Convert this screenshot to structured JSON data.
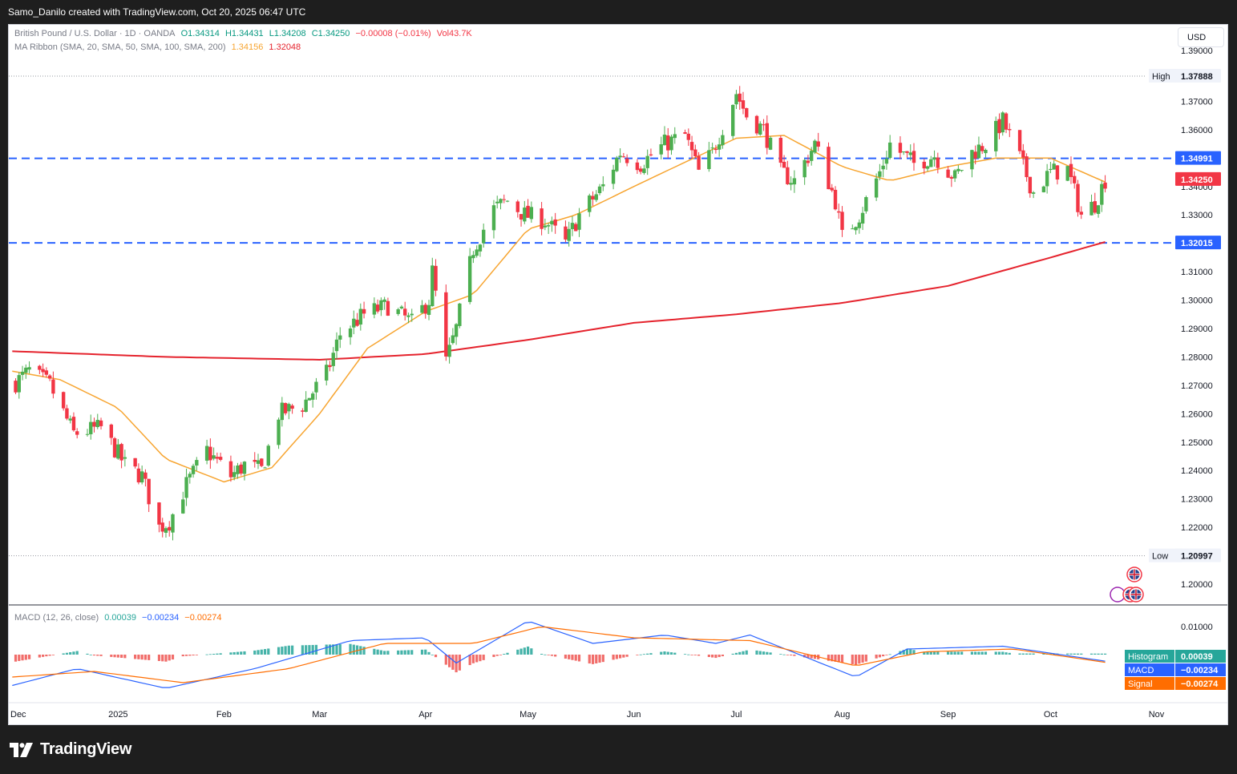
{
  "header": {
    "credit": "Samo_Danilo created with TradingView.com, Oct 20, 2025 06:47 UTC"
  },
  "legend": {
    "symbol": "British Pound / U.S. Dollar · 1D · OANDA",
    "open": "O1.34314",
    "high": "H1.34431",
    "low": "L1.34208",
    "close": "C1.34250",
    "change": "−0.00008 (−0.01%)",
    "volume": "Vol43.7K",
    "ma_title": "MA Ribbon (SMA, 20, SMA, 50, SMA, 100, SMA, 200)",
    "ma_val1": "1.34156",
    "ma_val2": "1.32048",
    "macd_title": "MACD (12, 26, close)",
    "macd_hist": "0.00039",
    "macd_macd": "−0.00234",
    "macd_signal": "−0.00274"
  },
  "currency_button": "USD",
  "price_axis": {
    "ticks": [
      "1.39000",
      "1.37000",
      "1.36000",
      "1.35000",
      "1.34000",
      "1.33000",
      "1.32000",
      "1.31000",
      "1.30000",
      "1.29000",
      "1.28000",
      "1.27000",
      "1.26000",
      "1.25000",
      "1.24000",
      "1.23000",
      "1.22000",
      "1.21000",
      "1.20000"
    ],
    "high_label": "High",
    "high_value": "1.37888",
    "low_label": "Low",
    "low_value": "1.20997",
    "resistance": "1.34991",
    "current": "1.34250",
    "support": "1.32015"
  },
  "macd_axis": {
    "tick": "0.01000",
    "hist_label": "Histogram",
    "hist_value": "0.00039",
    "macd_label": "MACD",
    "macd_value": "−0.00234",
    "signal_label": "Signal",
    "signal_value": "−0.00274"
  },
  "time_axis": [
    "Dec",
    "2025",
    "Feb",
    "Mar",
    "Apr",
    "May",
    "Jun",
    "Jul",
    "Aug",
    "Sep",
    "Oct",
    "Nov"
  ],
  "colors": {
    "up": "#089981",
    "up_fill": "#4caf50",
    "down": "#f23645",
    "ma_fast": "#f7a531",
    "ma_slow": "#e5232d",
    "level": "#2962ff",
    "macd": "#2962ff",
    "signal": "#ff6d00",
    "hist_up": "#26a69a",
    "hist_down": "#ef5350"
  },
  "branding": {
    "logo_text": "TradingView"
  },
  "chart_data": {
    "type": "candlestick",
    "symbol": "GBPUSD",
    "timeframe": "1D",
    "ylim": [
      1.195,
      1.395
    ],
    "levels": [
      1.34991,
      1.32015
    ],
    "high": 1.37888,
    "low": 1.20997,
    "last": 1.3425,
    "close_path": [
      {
        "date": "2024-12-01",
        "price": 1.27
      },
      {
        "date": "2024-12-06",
        "price": 1.275
      },
      {
        "date": "2024-12-12",
        "price": 1.27
      },
      {
        "date": "2024-12-19",
        "price": 1.253
      },
      {
        "date": "2024-12-27",
        "price": 1.255
      },
      {
        "date": "2025-01-03",
        "price": 1.242
      },
      {
        "date": "2025-01-08",
        "price": 1.238
      },
      {
        "date": "2025-01-13",
        "price": 1.22
      },
      {
        "date": "2025-01-16",
        "price": 1.222
      },
      {
        "date": "2025-01-21",
        "price": 1.235
      },
      {
        "date": "2025-01-27",
        "price": 1.247
      },
      {
        "date": "2025-02-03",
        "price": 1.238
      },
      {
        "date": "2025-02-07",
        "price": 1.242
      },
      {
        "date": "2025-02-12",
        "price": 1.24
      },
      {
        "date": "2025-02-17",
        "price": 1.26
      },
      {
        "date": "2025-02-24",
        "price": 1.263
      },
      {
        "date": "2025-03-03",
        "price": 1.274
      },
      {
        "date": "2025-03-07",
        "price": 1.288
      },
      {
        "date": "2025-03-14",
        "price": 1.295
      },
      {
        "date": "2025-03-21",
        "price": 1.298
      },
      {
        "date": "2025-03-28",
        "price": 1.292
      },
      {
        "date": "2025-04-02",
        "price": 1.3
      },
      {
        "date": "2025-04-03",
        "price": 1.31
      },
      {
        "date": "2025-04-07",
        "price": 1.278
      },
      {
        "date": "2025-04-10",
        "price": 1.29
      },
      {
        "date": "2025-04-15",
        "price": 1.318
      },
      {
        "date": "2025-04-21",
        "price": 1.332
      },
      {
        "date": "2025-04-25",
        "price": 1.335
      },
      {
        "date": "2025-04-30",
        "price": 1.33
      },
      {
        "date": "2025-05-06",
        "price": 1.328
      },
      {
        "date": "2025-05-12",
        "price": 1.32
      },
      {
        "date": "2025-05-16",
        "price": 1.33
      },
      {
        "date": "2025-05-23",
        "price": 1.34
      },
      {
        "date": "2025-05-28",
        "price": 1.352
      },
      {
        "date": "2025-06-03",
        "price": 1.348
      },
      {
        "date": "2025-06-10",
        "price": 1.355
      },
      {
        "date": "2025-06-16",
        "price": 1.358
      },
      {
        "date": "2025-06-20",
        "price": 1.345
      },
      {
        "date": "2025-06-24",
        "price": 1.352
      },
      {
        "date": "2025-07-01",
        "price": 1.373
      },
      {
        "date": "2025-07-04",
        "price": 1.365
      },
      {
        "date": "2025-07-09",
        "price": 1.36
      },
      {
        "date": "2025-07-14",
        "price": 1.345
      },
      {
        "date": "2025-07-18",
        "price": 1.342
      },
      {
        "date": "2025-07-24",
        "price": 1.355
      },
      {
        "date": "2025-07-30",
        "price": 1.335
      },
      {
        "date": "2025-08-01",
        "price": 1.322
      },
      {
        "date": "2025-08-06",
        "price": 1.33
      },
      {
        "date": "2025-08-12",
        "price": 1.345
      },
      {
        "date": "2025-08-15",
        "price": 1.355
      },
      {
        "date": "2025-08-22",
        "price": 1.348
      },
      {
        "date": "2025-08-28",
        "price": 1.351
      },
      {
        "date": "2025-09-03",
        "price": 1.343
      },
      {
        "date": "2025-09-08",
        "price": 1.352
      },
      {
        "date": "2025-09-12",
        "price": 1.355
      },
      {
        "date": "2025-09-17",
        "price": 1.363
      },
      {
        "date": "2025-09-22",
        "price": 1.35
      },
      {
        "date": "2025-09-26",
        "price": 1.338
      },
      {
        "date": "2025-10-01",
        "price": 1.345
      },
      {
        "date": "2025-10-06",
        "price": 1.346
      },
      {
        "date": "2025-10-10",
        "price": 1.33
      },
      {
        "date": "2025-10-14",
        "price": 1.334
      },
      {
        "date": "2025-10-17",
        "price": 1.3425
      }
    ],
    "ma_fast_path": [
      {
        "date": "2024-12-01",
        "price": 1.275
      },
      {
        "date": "2024-12-15",
        "price": 1.272
      },
      {
        "date": "2025-01-01",
        "price": 1.262
      },
      {
        "date": "2025-01-15",
        "price": 1.244
      },
      {
        "date": "2025-02-01",
        "price": 1.236
      },
      {
        "date": "2025-02-15",
        "price": 1.241
      },
      {
        "date": "2025-03-01",
        "price": 1.26
      },
      {
        "date": "2025-03-15",
        "price": 1.283
      },
      {
        "date": "2025-04-01",
        "price": 1.296
      },
      {
        "date": "2025-04-15",
        "price": 1.302
      },
      {
        "date": "2025-05-01",
        "price": 1.325
      },
      {
        "date": "2025-05-15",
        "price": 1.33
      },
      {
        "date": "2025-06-01",
        "price": 1.34
      },
      {
        "date": "2025-06-15",
        "price": 1.348
      },
      {
        "date": "2025-07-01",
        "price": 1.357
      },
      {
        "date": "2025-07-15",
        "price": 1.358
      },
      {
        "date": "2025-08-01",
        "price": 1.347
      },
      {
        "date": "2025-08-15",
        "price": 1.342
      },
      {
        "date": "2025-09-01",
        "price": 1.347
      },
      {
        "date": "2025-09-15",
        "price": 1.35
      },
      {
        "date": "2025-10-01",
        "price": 1.35
      },
      {
        "date": "2025-10-17",
        "price": 1.34156
      }
    ],
    "ma_slow_path": [
      {
        "date": "2024-12-01",
        "price": 1.282
      },
      {
        "date": "2025-01-15",
        "price": 1.28
      },
      {
        "date": "2025-03-01",
        "price": 1.279
      },
      {
        "date": "2025-04-01",
        "price": 1.281
      },
      {
        "date": "2025-05-01",
        "price": 1.286
      },
      {
        "date": "2025-06-01",
        "price": 1.292
      },
      {
        "date": "2025-07-01",
        "price": 1.295
      },
      {
        "date": "2025-08-01",
        "price": 1.299
      },
      {
        "date": "2025-09-01",
        "price": 1.305
      },
      {
        "date": "2025-10-01",
        "price": 1.315
      },
      {
        "date": "2025-10-17",
        "price": 1.32048
      }
    ],
    "macd": [
      {
        "date": "2024-12-01",
        "value": -0.011
      },
      {
        "date": "2024-12-20",
        "value": -0.005
      },
      {
        "date": "2025-01-15",
        "value": -0.012
      },
      {
        "date": "2025-02-10",
        "value": -0.005
      },
      {
        "date": "2025-03-10",
        "value": 0.005
      },
      {
        "date": "2025-04-01",
        "value": 0.006
      },
      {
        "date": "2025-04-10",
        "value": -0.003
      },
      {
        "date": "2025-05-01",
        "value": 0.012
      },
      {
        "date": "2025-05-20",
        "value": 0.004
      },
      {
        "date": "2025-06-10",
        "value": 0.007
      },
      {
        "date": "2025-06-25",
        "value": 0.004
      },
      {
        "date": "2025-07-05",
        "value": 0.007
      },
      {
        "date": "2025-08-05",
        "value": -0.008
      },
      {
        "date": "2025-08-20",
        "value": 0.002
      },
      {
        "date": "2025-09-17",
        "value": 0.003
      },
      {
        "date": "2025-10-17",
        "value": -0.00234
      }
    ],
    "signal": [
      {
        "date": "2024-12-01",
        "value": -0.008
      },
      {
        "date": "2024-12-25",
        "value": -0.006
      },
      {
        "date": "2025-01-20",
        "value": -0.01
      },
      {
        "date": "2025-02-20",
        "value": -0.005
      },
      {
        "date": "2025-03-20",
        "value": 0.004
      },
      {
        "date": "2025-04-15",
        "value": 0.004
      },
      {
        "date": "2025-05-05",
        "value": 0.01
      },
      {
        "date": "2025-06-01",
        "value": 0.006
      },
      {
        "date": "2025-07-05",
        "value": 0.005
      },
      {
        "date": "2025-08-05",
        "value": -0.004
      },
      {
        "date": "2025-08-25",
        "value": 0.001
      },
      {
        "date": "2025-09-20",
        "value": 0.002
      },
      {
        "date": "2025-10-17",
        "value": -0.00274
      }
    ]
  }
}
